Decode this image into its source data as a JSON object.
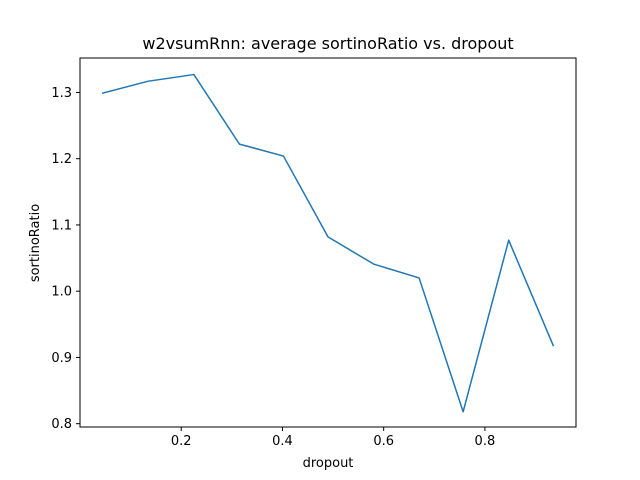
{
  "chart_data": {
    "type": "line",
    "title": "w2vsumRnn: average sortinoRatio vs. dropout",
    "xlabel": "dropout",
    "ylabel": "sortinoRatio",
    "xlim": [
      0.0,
      0.98
    ],
    "ylim": [
      0.795,
      1.352
    ],
    "xticks": [
      "0.2",
      "0.4",
      "0.6",
      "0.8"
    ],
    "yticks": [
      "0.8",
      "0.9",
      "1.0",
      "1.1",
      "1.2",
      "1.3"
    ],
    "grid": false,
    "series": [
      {
        "color": "#1f77b4",
        "x": [
          0.045,
          0.135,
          0.225,
          0.315,
          0.402,
          0.49,
          0.58,
          0.67,
          0.757,
          0.847,
          0.935
        ],
        "y": [
          1.299,
          1.317,
          1.327,
          1.222,
          1.204,
          1.082,
          1.041,
          1.02,
          0.818,
          1.077,
          0.918
        ]
      }
    ]
  }
}
